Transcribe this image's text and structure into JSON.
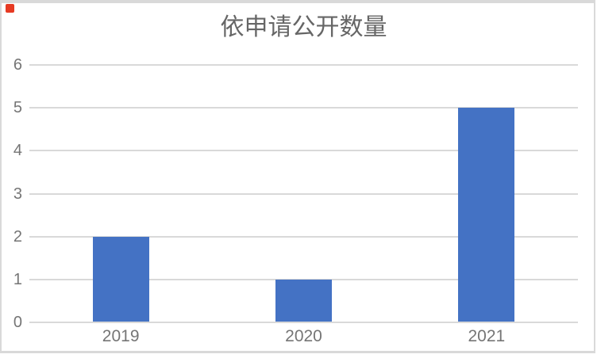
{
  "page": {
    "background": "#ffffff",
    "border_color": "#d9d9d9"
  },
  "marker": {
    "name": "red-square",
    "color": "#e63a23"
  },
  "chart_data": {
    "type": "bar",
    "title": "依申请公开数量",
    "categories": [
      "2019",
      "2020",
      "2021"
    ],
    "values": [
      2,
      1,
      5
    ],
    "yticks": [
      0,
      1,
      2,
      3,
      4,
      5,
      6
    ],
    "ylim": [
      0,
      6
    ],
    "xlabel": "",
    "ylabel": "",
    "grid": "horizontal",
    "legend": "none",
    "bar_color": "#4472c4",
    "gridline_color": "#d9d9d9",
    "title_color": "#666666",
    "tick_label_color": "#757575"
  }
}
